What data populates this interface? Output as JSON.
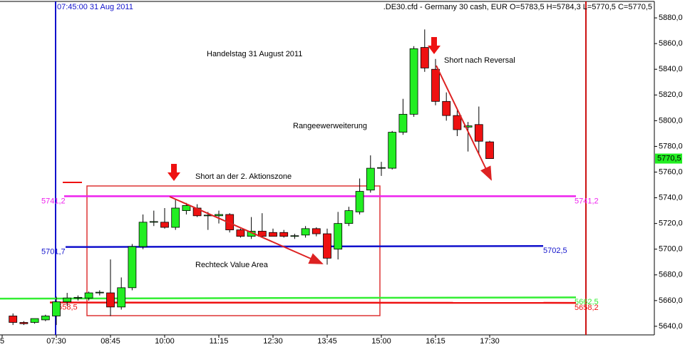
{
  "chart_data": {
    "type": "candlestick",
    "title": ".DE30.cfd - Germany 30 cash, EUR O=5783,5 H=5784,3 L=5770,5 C=5770,5",
    "cursor_label": "07:45:00 31 Aug 2011",
    "annotations": [
      "Handelstag 31 August 2011",
      "Short nach Reversal",
      "Rangeewerweiterung",
      "Short an der 2. Aktionszone",
      "Rechteck Value Area"
    ],
    "categories": [
      "5",
      null,
      null,
      null,
      null,
      "07:30",
      null,
      null,
      null,
      null,
      "08:45",
      null,
      null,
      null,
      null,
      "10:00",
      null,
      null,
      null,
      null,
      "11:15",
      null,
      null,
      null,
      null,
      "12:30",
      null,
      null,
      null,
      null,
      "13:45",
      null,
      null,
      null,
      null,
      "15:00",
      null,
      null,
      null,
      null,
      "16:15",
      null,
      null,
      null,
      null,
      "17:30"
    ],
    "open": [
      null,
      5648,
      5643,
      5643,
      5645,
      5648,
      5659,
      5662,
      5662,
      5666,
      5666,
      5655,
      5670,
      5702,
      5721,
      5721,
      5717,
      5730,
      5732,
      5726,
      5726,
      5727,
      5715,
      5710,
      5714,
      5713,
      5713,
      5710,
      5711,
      5716,
      5712,
      5700,
      5720,
      5729,
      5746,
      5763,
      5763,
      5791,
      5805,
      5857,
      5840,
      5815,
      5804,
      5795,
      5797,
      5783.5
    ],
    "high": [
      null,
      5650,
      5644,
      5646,
      5649,
      5663,
      5666,
      5664,
      5667,
      5668,
      5692,
      5678,
      5704,
      5727,
      5730,
      5732,
      5739,
      5736,
      5735,
      5729,
      5730,
      5728,
      5716,
      5725,
      5728,
      5716,
      5715,
      5712,
      5718,
      5717,
      5716,
      5729,
      5733,
      5755,
      5773,
      5768,
      5792,
      5817,
      5858,
      5871,
      5848,
      5822,
      5808,
      5799,
      5811,
      5784.3
    ],
    "low": [
      null,
      5641,
      5641,
      5642,
      5644,
      5641,
      5656,
      5660,
      5660,
      5664,
      5648,
      5653,
      5668,
      5700,
      5718,
      5716,
      5715,
      5727,
      5725,
      5715,
      5720,
      5713,
      5709,
      5708,
      5709,
      5710,
      5709,
      5708,
      5709,
      5710,
      5688,
      5692,
      5718,
      5727,
      5744,
      5757,
      5762,
      5789,
      5803,
      5838,
      5812,
      5800,
      5788,
      5776,
      5774,
      5770.5
    ],
    "close": [
      null,
      5643,
      5642,
      5646,
      5648,
      5659,
      5662,
      5662.5,
      5666,
      5666.5,
      5655,
      5670,
      5702,
      5721,
      5721.5,
      5717,
      5732,
      5734,
      5726,
      5726.5,
      5727,
      5715,
      5710,
      5714,
      5710,
      5710,
      5710,
      5710.5,
      5716,
      5712,
      5693,
      5720,
      5730,
      5745,
      5763,
      5763.5,
      5791,
      5805,
      5856,
      5841,
      5815,
      5804,
      5793,
      5796,
      5784,
      5770.5
    ],
    "up_color": "#22ee22",
    "down_color": "#ee1111",
    "ylim": [
      5633.3,
      5892.8
    ],
    "yticks": [
      {
        "value": 5640,
        "label": "5640,0"
      },
      {
        "value": 5660,
        "label": "5660,0"
      },
      {
        "value": 5680,
        "label": "5680,0"
      },
      {
        "value": 5700,
        "label": "5700,0"
      },
      {
        "value": 5720,
        "label": "5720,0"
      },
      {
        "value": 5740,
        "label": "5740,0"
      },
      {
        "value": 5760,
        "label": "5760,0"
      },
      {
        "value": 5780,
        "label": "5780,0"
      },
      {
        "value": 5800,
        "label": "5800,0"
      },
      {
        "value": 5820,
        "label": "5820,0"
      },
      {
        "value": 5840,
        "label": "5840,0"
      },
      {
        "value": 5860,
        "label": "5860,0"
      },
      {
        "value": 5880,
        "label": "5880,0"
      }
    ],
    "levels": [
      {
        "values": [
          5741.2,
          5741.2
        ],
        "value_labels": [
          "5741,2",
          "5741,2"
        ],
        "color": "#ee22ee"
      },
      {
        "values": [
          5701.7,
          5702.5
        ],
        "value_labels": [
          "5701,7",
          "5702,5"
        ],
        "color": "#1111cc"
      },
      {
        "values": [
          5661.5,
          5662.5
        ],
        "value_labels": [
          null,
          "5662,5"
        ],
        "color": "#33ee33"
      },
      {
        "values": [
          5658.5,
          5658.2
        ],
        "value_labels": [
          "5658,5",
          "5658,2"
        ],
        "color": "#ee1111"
      }
    ],
    "last_price": {
      "value": 5770.5,
      "label": "5770,5",
      "color": "#22ee22"
    }
  }
}
